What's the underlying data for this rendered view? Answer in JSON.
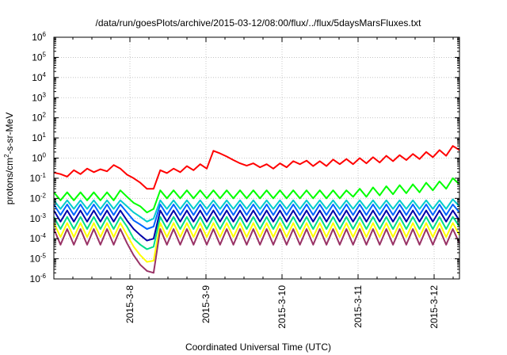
{
  "chart_data": {
    "type": "line",
    "title": "/data/run/goesPlots/archive/2015-03-12/08:00/flux/../flux/5daysMarsFluxes.txt",
    "xlabel": "Coordinated Universal Time (UTC)",
    "ylabel": "protons/cm²-s-sr-MeV",
    "ylabel_parts": [
      "protons/cm",
      "2",
      "-s-sr-MeV"
    ],
    "x_range": [
      "2015-03-07 00:00",
      "2015-03-12 08:00"
    ],
    "x_ticks": [
      "2015-3-8",
      "2015-3-9",
      "2015-3-10",
      "2015-3-11",
      "2015-3-12"
    ],
    "y_scale": "log",
    "ylim": [
      1e-06,
      1000000.0
    ],
    "y_ticks": [
      {
        "base": "10",
        "exp": "-6"
      },
      {
        "base": "10",
        "exp": "-5"
      },
      {
        "base": "10",
        "exp": "-4"
      },
      {
        "base": "10",
        "exp": "-3"
      },
      {
        "base": "10",
        "exp": "-2"
      },
      {
        "base": "10",
        "exp": "-1"
      },
      {
        "base": "10",
        "exp": "0"
      },
      {
        "base": "10",
        "exp": "1"
      },
      {
        "base": "10",
        "exp": "2"
      },
      {
        "base": "10",
        "exp": "3"
      },
      {
        "base": "10",
        "exp": "4"
      },
      {
        "base": "10",
        "exp": "5"
      },
      {
        "base": "10",
        "exp": "6"
      }
    ],
    "grid": true,
    "series": [
      {
        "color": "#ff0000",
        "values": [
          0.19,
          0.16,
          0.12,
          0.25,
          0.16,
          0.3,
          0.2,
          0.28,
          0.22,
          0.45,
          0.3,
          0.15,
          0.1,
          0.06,
          0.03,
          0.03,
          0.25,
          0.18,
          0.3,
          0.2,
          0.4,
          0.25,
          0.5,
          0.3,
          2.3,
          1.7,
          1.2,
          0.8,
          0.55,
          0.42,
          0.55,
          0.35,
          0.5,
          0.3,
          0.55,
          0.35,
          0.7,
          0.5,
          0.75,
          0.4,
          0.7,
          0.4,
          0.85,
          0.5,
          0.9,
          0.5,
          1.0,
          0.55,
          1.1,
          0.6,
          1.3,
          0.7,
          1.4,
          0.8,
          1.6,
          0.9,
          2.0,
          1.1,
          2.5,
          1.3,
          4.0,
          2.5
        ]
      },
      {
        "color": "#00ff00",
        "values": [
          0.02,
          0.008,
          0.02,
          0.008,
          0.02,
          0.008,
          0.02,
          0.008,
          0.02,
          0.008,
          0.025,
          0.012,
          0.006,
          0.004,
          0.002,
          0.003,
          0.025,
          0.01,
          0.025,
          0.01,
          0.025,
          0.01,
          0.025,
          0.01,
          0.025,
          0.01,
          0.025,
          0.01,
          0.025,
          0.01,
          0.025,
          0.01,
          0.025,
          0.01,
          0.025,
          0.01,
          0.025,
          0.01,
          0.025,
          0.01,
          0.025,
          0.01,
          0.025,
          0.01,
          0.025,
          0.012,
          0.03,
          0.012,
          0.035,
          0.014,
          0.04,
          0.016,
          0.045,
          0.018,
          0.05,
          0.02,
          0.06,
          0.025,
          0.07,
          0.03,
          0.1,
          0.05
        ]
      },
      {
        "color": "#00cccc",
        "values": [
          0.008,
          0.003,
          0.008,
          0.003,
          0.008,
          0.003,
          0.008,
          0.003,
          0.008,
          0.003,
          0.008,
          0.004,
          0.002,
          0.0012,
          0.0007,
          0.001,
          0.008,
          0.003,
          0.008,
          0.003,
          0.008,
          0.003,
          0.008,
          0.003,
          0.008,
          0.003,
          0.008,
          0.003,
          0.008,
          0.003,
          0.008,
          0.003,
          0.008,
          0.003,
          0.008,
          0.003,
          0.008,
          0.003,
          0.008,
          0.003,
          0.008,
          0.003,
          0.008,
          0.003,
          0.008,
          0.003,
          0.008,
          0.003,
          0.008,
          0.003,
          0.008,
          0.003,
          0.008,
          0.003,
          0.008,
          0.003,
          0.008,
          0.003,
          0.008,
          0.003,
          0.009,
          0.004
        ]
      },
      {
        "color": "#0066ff",
        "values": [
          0.005,
          0.0015,
          0.005,
          0.0015,
          0.005,
          0.0015,
          0.005,
          0.0015,
          0.005,
          0.0015,
          0.005,
          0.002,
          0.0008,
          0.0005,
          0.0003,
          0.0004,
          0.005,
          0.0015,
          0.005,
          0.0015,
          0.005,
          0.0015,
          0.005,
          0.0015,
          0.005,
          0.0015,
          0.005,
          0.0015,
          0.005,
          0.0015,
          0.005,
          0.0015,
          0.005,
          0.0015,
          0.005,
          0.0015,
          0.005,
          0.0015,
          0.005,
          0.0015,
          0.005,
          0.0015,
          0.005,
          0.0015,
          0.005,
          0.0015,
          0.005,
          0.0015,
          0.005,
          0.0015,
          0.005,
          0.0015,
          0.005,
          0.0015,
          0.005,
          0.0015,
          0.005,
          0.0015,
          0.005,
          0.0015,
          0.005,
          0.002
        ]
      },
      {
        "color": "#0000aa",
        "values": [
          0.0025,
          0.0007,
          0.0025,
          0.0007,
          0.0025,
          0.0007,
          0.0025,
          0.0007,
          0.0025,
          0.0007,
          0.0025,
          0.0008,
          0.0003,
          0.00015,
          8e-05,
          0.0001,
          0.0025,
          0.0007,
          0.0025,
          0.0007,
          0.0025,
          0.0007,
          0.0025,
          0.0007,
          0.0025,
          0.0007,
          0.0025,
          0.0007,
          0.0025,
          0.0007,
          0.0025,
          0.0007,
          0.0025,
          0.0007,
          0.0025,
          0.0007,
          0.0025,
          0.0007,
          0.0025,
          0.0007,
          0.0025,
          0.0007,
          0.0025,
          0.0007,
          0.0025,
          0.0007,
          0.0025,
          0.0007,
          0.0025,
          0.0007,
          0.0025,
          0.0007,
          0.0025,
          0.0007,
          0.0025,
          0.0007,
          0.0025,
          0.0007,
          0.0025,
          0.0007,
          0.0025,
          0.0008
        ]
      },
      {
        "color": "#00dd88",
        "values": [
          0.0012,
          0.0003,
          0.0012,
          0.0003,
          0.0012,
          0.0003,
          0.0012,
          0.0003,
          0.0012,
          0.0003,
          0.0012,
          0.0004,
          0.0001,
          5e-05,
          3e-05,
          4e-05,
          0.0012,
          0.0003,
          0.0012,
          0.0003,
          0.0012,
          0.0003,
          0.0012,
          0.0003,
          0.0012,
          0.0003,
          0.0012,
          0.0003,
          0.0012,
          0.0003,
          0.0012,
          0.0003,
          0.0012,
          0.0003,
          0.0012,
          0.0003,
          0.0012,
          0.0003,
          0.0012,
          0.0003,
          0.0012,
          0.0003,
          0.0012,
          0.0003,
          0.0012,
          0.0003,
          0.0012,
          0.0003,
          0.0012,
          0.0003,
          0.0012,
          0.0003,
          0.0012,
          0.0003,
          0.0012,
          0.0003,
          0.0012,
          0.0003,
          0.0012,
          0.0003,
          0.0012,
          0.0004
        ]
      },
      {
        "color": "#ffff00",
        "values": [
          0.0006,
          0.00012,
          0.0006,
          0.00012,
          0.0006,
          0.00012,
          0.0006,
          0.00012,
          0.0006,
          0.00012,
          0.0006,
          0.00015,
          4e-05,
          1.5e-05,
          7e-06,
          8e-06,
          0.0006,
          0.00012,
          0.0006,
          0.00012,
          0.0006,
          0.00012,
          0.0006,
          0.00012,
          0.0006,
          0.00012,
          0.0006,
          0.00012,
          0.0006,
          0.00012,
          0.0006,
          0.00012,
          0.0006,
          0.00012,
          0.0006,
          0.00012,
          0.0006,
          0.00012,
          0.0006,
          0.00012,
          0.0006,
          0.00012,
          0.0006,
          0.00012,
          0.0006,
          0.00012,
          0.0006,
          0.00012,
          0.0006,
          0.00012,
          0.0006,
          0.00012,
          0.0006,
          0.00012,
          0.0006,
          0.00012,
          0.0006,
          0.00012,
          0.0006,
          0.00012,
          0.0006,
          0.00015
        ]
      },
      {
        "color": "#993366",
        "values": [
          0.0003,
          5e-05,
          0.0003,
          5e-05,
          0.0003,
          5e-05,
          0.0003,
          5e-05,
          0.0003,
          5e-05,
          0.0003,
          6e-05,
          1.5e-05,
          5e-06,
          2.5e-06,
          2e-06,
          0.0003,
          5e-05,
          0.0003,
          5e-05,
          0.0003,
          5e-05,
          0.0003,
          5e-05,
          0.0003,
          5e-05,
          0.0003,
          5e-05,
          0.0003,
          5e-05,
          0.0003,
          5e-05,
          0.0003,
          5e-05,
          0.0003,
          5e-05,
          0.0003,
          5e-05,
          0.0003,
          5e-05,
          0.0003,
          5e-05,
          0.0003,
          5e-05,
          0.0003,
          5e-05,
          0.0003,
          5e-05,
          0.0003,
          5e-05,
          0.0003,
          5e-05,
          0.0003,
          5e-05,
          0.0003,
          5e-05,
          0.0003,
          5e-05,
          0.0003,
          5e-05,
          0.0003,
          6e-05
        ]
      }
    ]
  }
}
